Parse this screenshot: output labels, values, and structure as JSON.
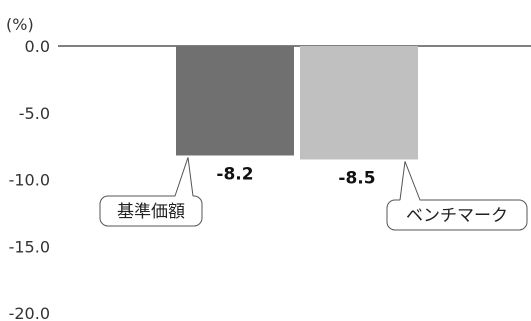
{
  "chart_data": {
    "type": "bar",
    "unit_label": "(%)",
    "categories": [
      "基準価額",
      "ベンチマーク"
    ],
    "values": [
      -8.2,
      -8.5
    ],
    "value_labels": [
      "-8.2",
      "-8.5"
    ],
    "ylim": [
      -20,
      0
    ],
    "yticks": [
      0,
      -5,
      -10,
      -15,
      -20
    ],
    "ytick_labels": [
      "0.0",
      "-5.0",
      "-10.0",
      "-15.0",
      "-20.0"
    ],
    "colors": [
      "#707070",
      "#c0c0c0"
    ],
    "zero_line_color": "#808080",
    "grid": false,
    "legend": "none"
  }
}
